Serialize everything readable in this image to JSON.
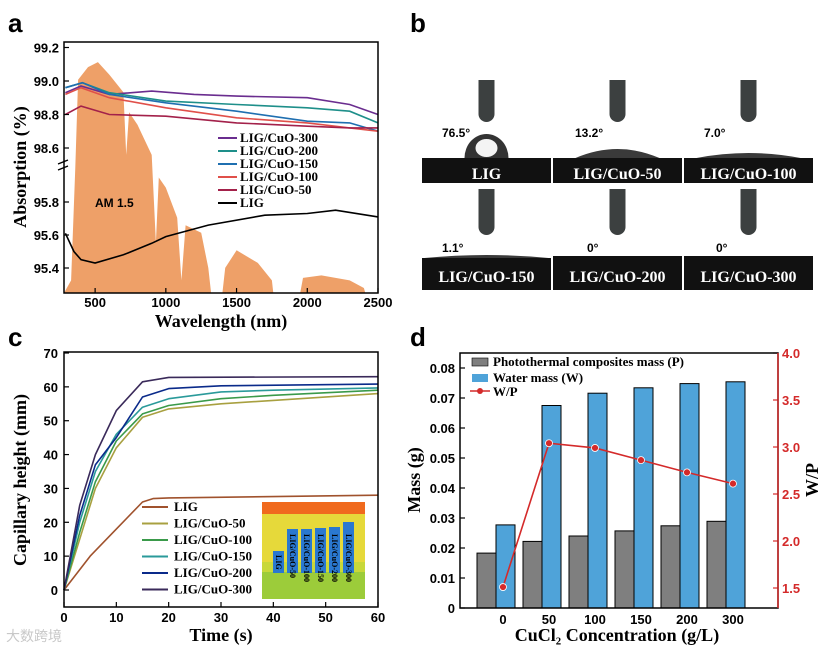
{
  "panel_letters": {
    "a": "a",
    "b": "b",
    "c": "c",
    "d": "d"
  },
  "watermark": "大数跨境",
  "chart_data": [
    {
      "type": "line",
      "panel": "a",
      "xlabel": "Wavelength (nm)",
      "ylabel": "Absorption (%)",
      "xlim": [
        280,
        2500
      ],
      "ylim_upper": [
        98.5,
        99.25
      ],
      "ylim_lower": [
        95.25,
        96.0
      ],
      "axis_break": true,
      "xticks": [
        "500",
        "1000",
        "1500",
        "2000",
        "2500"
      ],
      "xtick_values": [
        500,
        1000,
        1500,
        2000,
        2500
      ],
      "yticks_upper": [
        "98.6",
        "98.8",
        "99.0",
        "99.2"
      ],
      "ytick_values_upper": [
        98.6,
        98.8,
        99.0,
        99.2
      ],
      "yticks_lower": [
        "95.4",
        "95.6",
        "95.8"
      ],
      "ytick_values_lower": [
        95.4,
        95.6,
        95.8
      ],
      "annotation": "AM 1.5",
      "legend_placement": "center-right",
      "am15_relative": [
        [
          280,
          0
        ],
        [
          330,
          0.05
        ],
        [
          360,
          0.5
        ],
        [
          380,
          0.85
        ],
        [
          450,
          0.9
        ],
        [
          520,
          0.92
        ],
        [
          600,
          0.87
        ],
        [
          700,
          0.8
        ],
        [
          720,
          0.55
        ],
        [
          740,
          0.72
        ],
        [
          800,
          0.67
        ],
        [
          900,
          0.55
        ],
        [
          930,
          0.2
        ],
        [
          950,
          0.46
        ],
        [
          1000,
          0.42
        ],
        [
          1080,
          0.3
        ],
        [
          1110,
          0.05
        ],
        [
          1140,
          0.27
        ],
        [
          1250,
          0.24
        ],
        [
          1300,
          0.1
        ],
        [
          1320,
          0
        ],
        [
          1400,
          0
        ],
        [
          1420,
          0.1
        ],
        [
          1500,
          0.17
        ],
        [
          1650,
          0.12
        ],
        [
          1750,
          0.05
        ],
        [
          1760,
          0
        ],
        [
          1950,
          0
        ],
        [
          1970,
          0.06
        ],
        [
          2100,
          0.07
        ],
        [
          2300,
          0.05
        ],
        [
          2400,
          0.02
        ],
        [
          2410,
          0
        ]
      ],
      "series": [
        {
          "name": "LIG/CuO-300",
          "color": "#6a2d8f",
          "segment": "upper",
          "points": [
            [
              290,
              98.93
            ],
            [
              400,
              98.97
            ],
            [
              600,
              98.92
            ],
            [
              900,
              98.94
            ],
            [
              1200,
              98.92
            ],
            [
              1500,
              98.91
            ],
            [
              2000,
              98.9
            ],
            [
              2300,
              98.86
            ],
            [
              2500,
              98.8
            ]
          ]
        },
        {
          "name": "LIG/CuO-200",
          "color": "#1e8f8a",
          "segment": "upper",
          "points": [
            [
              290,
              98.96
            ],
            [
              410,
              98.99
            ],
            [
              600,
              98.93
            ],
            [
              1000,
              98.88
            ],
            [
              1500,
              98.86
            ],
            [
              2000,
              98.84
            ],
            [
              2300,
              98.82
            ],
            [
              2500,
              98.75
            ]
          ]
        },
        {
          "name": "LIG/CuO-150",
          "color": "#1f6fb0",
          "segment": "upper",
          "points": [
            [
              290,
              98.96
            ],
            [
              410,
              98.99
            ],
            [
              600,
              98.92
            ],
            [
              1000,
              98.87
            ],
            [
              1500,
              98.82
            ],
            [
              2000,
              98.76
            ],
            [
              2300,
              98.75
            ],
            [
              2500,
              98.7
            ]
          ]
        },
        {
          "name": "LIG/CuO-100",
          "color": "#e0504a",
          "segment": "upper",
          "points": [
            [
              290,
              98.92
            ],
            [
              400,
              98.96
            ],
            [
              600,
              98.9
            ],
            [
              1000,
              98.84
            ],
            [
              1500,
              98.78
            ],
            [
              2000,
              98.75
            ],
            [
              2300,
              98.72
            ],
            [
              2500,
              98.7
            ]
          ]
        },
        {
          "name": "LIG/CuO-50",
          "color": "#a3214a",
          "segment": "upper",
          "points": [
            [
              290,
              98.8
            ],
            [
              400,
              98.85
            ],
            [
              600,
              98.8
            ],
            [
              1000,
              98.79
            ],
            [
              1500,
              98.75
            ],
            [
              2000,
              98.73
            ],
            [
              2300,
              98.72
            ],
            [
              2500,
              98.72
            ]
          ]
        },
        {
          "name": "LIG",
          "color": "#000000",
          "segment": "lower",
          "points": [
            [
              290,
              95.61
            ],
            [
              350,
              95.5
            ],
            [
              400,
              95.45
            ],
            [
              500,
              95.43
            ],
            [
              700,
              95.48
            ],
            [
              900,
              95.55
            ],
            [
              1000,
              95.59
            ],
            [
              1300,
              95.66
            ],
            [
              1700,
              95.72
            ],
            [
              2000,
              95.73
            ],
            [
              2200,
              95.75
            ],
            [
              2500,
              95.71
            ]
          ]
        }
      ]
    },
    {
      "type": "line",
      "panel": "c",
      "xlabel": "Time (s)",
      "ylabel": "Capillary height (mm)",
      "xlim": [
        0,
        60
      ],
      "ylim": [
        -5,
        70
      ],
      "xticks": [
        "0",
        "10",
        "20",
        "30",
        "40",
        "50",
        "60"
      ],
      "xtick_values": [
        0,
        10,
        20,
        30,
        40,
        50,
        60
      ],
      "yticks": [
        "0",
        "10",
        "20",
        "30",
        "40",
        "50",
        "60",
        "70"
      ],
      "ytick_values": [
        0,
        10,
        20,
        30,
        40,
        50,
        60,
        70
      ],
      "legend_placement": "bottom-center",
      "inset_labels": [
        "LIG",
        "LIG/CuO-50",
        "LIG/CuO-100",
        "LIG/CuO-150",
        "LIG/CuO-200",
        "LIG/CuO-300"
      ],
      "series": [
        {
          "name": "LIG",
          "color": "#a0522d",
          "points": [
            [
              0,
              0
            ],
            [
              5,
              10
            ],
            [
              10,
              18
            ],
            [
              15,
              26
            ],
            [
              17,
              27
            ],
            [
              20,
              27.2
            ],
            [
              40,
              27.6
            ],
            [
              60,
              28
            ]
          ]
        },
        {
          "name": "LIG/CuO-50",
          "color": "#a8a040",
          "points": [
            [
              0,
              0
            ],
            [
              3,
              15
            ],
            [
              6,
              30
            ],
            [
              10,
              42
            ],
            [
              15,
              51
            ],
            [
              20,
              53.5
            ],
            [
              30,
              55
            ],
            [
              40,
              56
            ],
            [
              60,
              58
            ]
          ]
        },
        {
          "name": "LIG/CuO-100",
          "color": "#3a9a4a",
          "points": [
            [
              0,
              0
            ],
            [
              3,
              17
            ],
            [
              6,
              32
            ],
            [
              10,
              44
            ],
            [
              15,
              52
            ],
            [
              20,
              54.5
            ],
            [
              30,
              56.5
            ],
            [
              40,
              57.5
            ],
            [
              60,
              59
            ]
          ]
        },
        {
          "name": "LIG/CuO-150",
          "color": "#2a9a9a",
          "points": [
            [
              0,
              0
            ],
            [
              3,
              20
            ],
            [
              6,
              35
            ],
            [
              10,
              46
            ],
            [
              15,
              54
            ],
            [
              20,
              56.5
            ],
            [
              30,
              58.5
            ],
            [
              40,
              59
            ],
            [
              60,
              59.7
            ]
          ]
        },
        {
          "name": "LIG/CuO-200",
          "color": "#0a2a8a",
          "points": [
            [
              0,
              0
            ],
            [
              3,
              22
            ],
            [
              6,
              37
            ],
            [
              10,
              45
            ],
            [
              15,
              57
            ],
            [
              20,
              59.5
            ],
            [
              30,
              60.3
            ],
            [
              60,
              60.8
            ]
          ]
        },
        {
          "name": "LIG/CuO-300",
          "color": "#3a2a5a",
          "points": [
            [
              0,
              0
            ],
            [
              3,
              25
            ],
            [
              6,
              40
            ],
            [
              10,
              53
            ],
            [
              15,
              61.5
            ],
            [
              20,
              62.8
            ],
            [
              60,
              63
            ]
          ]
        }
      ]
    },
    {
      "type": "bar",
      "panel": "d",
      "xlabel": "CuCl₂ Concentration (g/L)",
      "ylabel": "Mass (g)",
      "y2label": "W/P",
      "categories": [
        "0",
        "50",
        "100",
        "150",
        "200",
        "300"
      ],
      "ylim": [
        0,
        0.085
      ],
      "y2lim": [
        1.29,
        4.0
      ],
      "yticks": [
        "0",
        "0.01",
        "0.02",
        "0.03",
        "0.04",
        "0.05",
        "0.06",
        "0.07",
        "0.08"
      ],
      "ytick_values": [
        0,
        0.01,
        0.02,
        0.03,
        0.04,
        0.05,
        0.06,
        0.07,
        0.08
      ],
      "y2ticks": [
        "1.5",
        "2.0",
        "2.5",
        "3.0",
        "3.5",
        "4.0"
      ],
      "y2tick_values": [
        1.5,
        2.0,
        2.5,
        3.0,
        3.5,
        4.0
      ],
      "legend_placement": "top-left",
      "series": [
        {
          "name": "Photothermal composites mass (P)",
          "color": "#7f7f7f",
          "axis": "left",
          "kind": "bar",
          "values": [
            0.0183,
            0.0222,
            0.024,
            0.0257,
            0.0274,
            0.0289
          ]
        },
        {
          "name": "Water mass (W)",
          "color": "#4fa3d9",
          "axis": "left",
          "kind": "bar",
          "values": [
            0.0277,
            0.0675,
            0.0716,
            0.0734,
            0.0748,
            0.0754
          ]
        },
        {
          "name": "W/P",
          "color": "#d42a2a",
          "axis": "right",
          "kind": "line",
          "values": [
            1.51,
            3.04,
            2.99,
            2.86,
            2.73,
            2.61
          ]
        }
      ]
    }
  ],
  "contact_angles": [
    {
      "label": "LIG",
      "angle": "76.5°",
      "angle_value": 76.5
    },
    {
      "label": "LIG/CuO-50",
      "angle": "13.2°",
      "angle_value": 13.2
    },
    {
      "label": "LIG/CuO-100",
      "angle": "7.0°",
      "angle_value": 7.0
    },
    {
      "label": "LIG/CuO-150",
      "angle": "1.1°",
      "angle_value": 1.1
    },
    {
      "label": "LIG/CuO-200",
      "angle": "0°",
      "angle_value": 0
    },
    {
      "label": "LIG/CuO-300",
      "angle": "0°",
      "angle_value": 0
    }
  ]
}
